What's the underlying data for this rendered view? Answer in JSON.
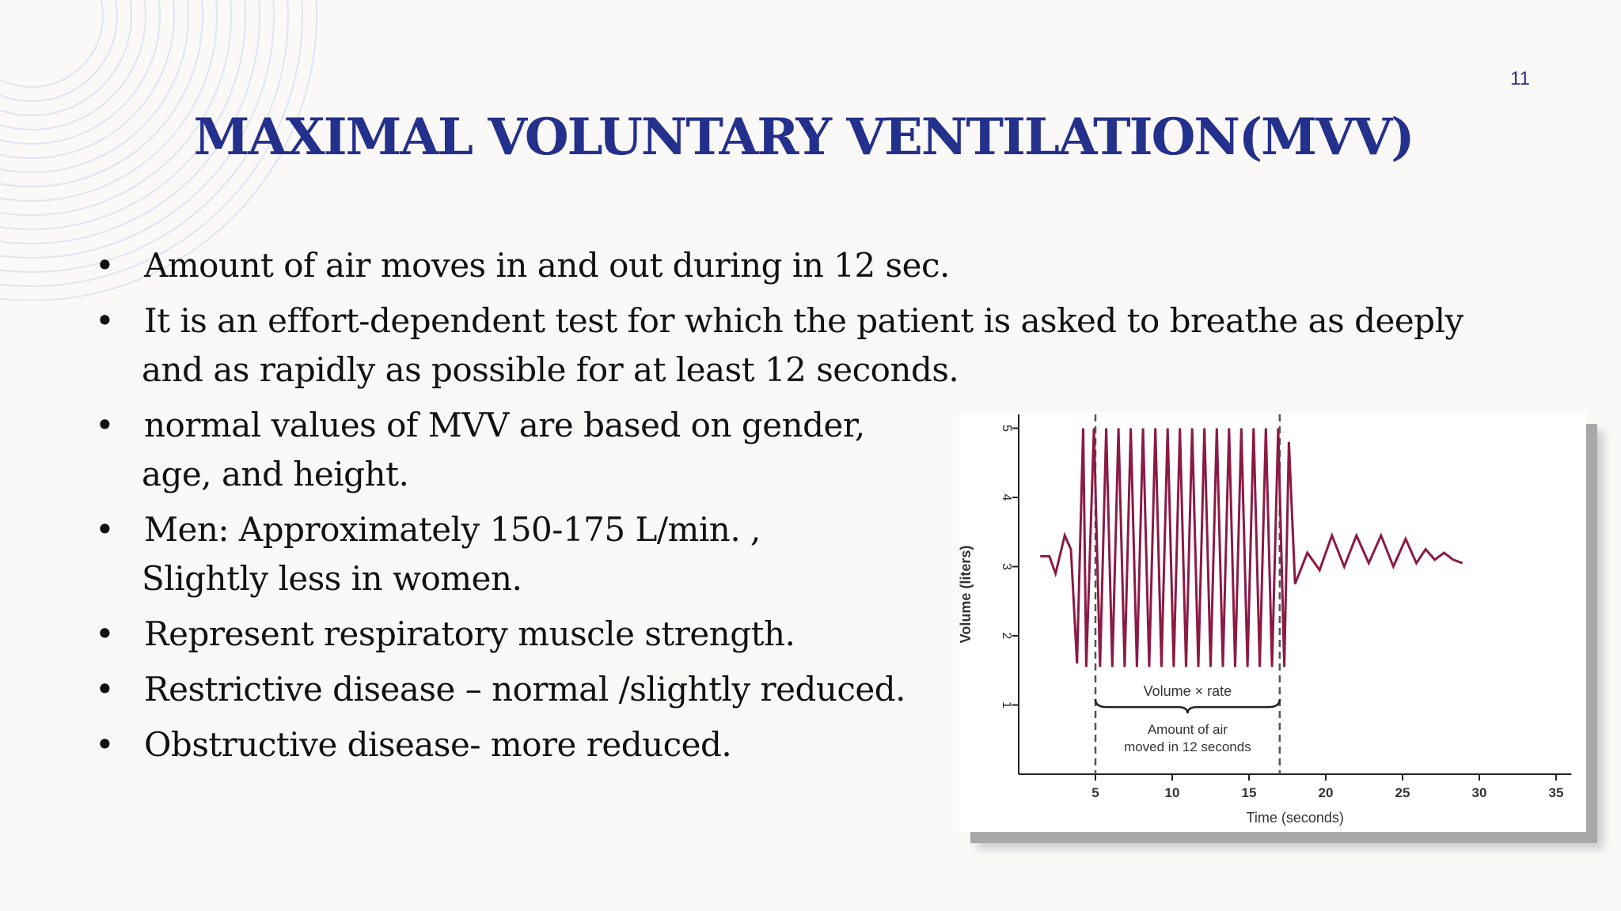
{
  "slide": {
    "number": "11",
    "title": "MAXIMAL VOLUNTARY VENTILATION(MVV)",
    "bullets": [
      {
        "lines": [
          "Amount of air moves in and out during in 12 sec."
        ]
      },
      {
        "lines": [
          "It is an effort-dependent test for which the patient is asked to breathe as deeply",
          "and as rapidly as possible for at least 12 seconds."
        ]
      },
      {
        "lines": [
          "normal values of MVV are based on gender,",
          "age, and height."
        ]
      },
      {
        "lines": [
          "Men: Approximately 150-175 L/min. ,",
          "Slightly less in women."
        ]
      },
      {
        "lines": [
          "Represent respiratory muscle strength."
        ]
      },
      {
        "lines": [
          "Restrictive disease – normal /slightly reduced."
        ]
      },
      {
        "lines": [
          "Obstructive disease- more reduced."
        ]
      }
    ],
    "bullet_char": "•",
    "accent_color": "#23308c"
  },
  "chart_data": {
    "type": "line",
    "xlabel": "Time (seconds)",
    "ylabel": "Volume (liters)",
    "xlim": [
      0,
      36
    ],
    "ylim": [
      0,
      5.2
    ],
    "x_ticks": [
      5,
      10,
      15,
      20,
      25,
      30,
      35
    ],
    "y_ticks": [
      1,
      2,
      3,
      4,
      5
    ],
    "line_color": "#8b1a45",
    "series": [
      {
        "x": [
          1.4,
          2.0,
          2.4,
          3.0,
          3.4,
          3.8,
          4.2,
          4.4,
          4.9,
          5.3,
          5.7,
          6.1,
          6.5,
          6.9,
          7.3,
          7.7,
          8.1,
          8.5,
          8.9,
          9.3,
          9.7,
          10.1,
          10.5,
          10.9,
          11.3,
          11.7,
          12.1,
          12.5,
          12.9,
          13.3,
          13.7,
          14.1,
          14.5,
          14.9,
          15.3,
          15.7,
          16.1,
          16.5,
          16.9,
          17.3,
          17.6,
          18.0,
          18.8,
          19.6,
          20.4,
          21.2,
          22.0,
          22.8,
          23.6,
          24.4,
          25.2,
          25.9,
          26.5,
          27.1,
          27.7,
          28.3,
          28.9
        ],
        "y": [
          3.15,
          3.15,
          2.9,
          3.45,
          3.25,
          1.6,
          5.0,
          1.55,
          5.0,
          1.55,
          5.0,
          1.55,
          5.0,
          1.55,
          5.0,
          1.55,
          5.0,
          1.55,
          5.0,
          1.55,
          5.0,
          1.55,
          5.0,
          1.55,
          5.0,
          1.55,
          5.0,
          1.55,
          5.0,
          1.55,
          5.0,
          1.55,
          5.0,
          1.55,
          5.0,
          1.55,
          5.0,
          1.55,
          5.0,
          1.55,
          4.8,
          2.75,
          3.2,
          2.95,
          3.45,
          3.0,
          3.45,
          3.05,
          3.45,
          3.0,
          3.4,
          3.05,
          3.25,
          3.1,
          3.2,
          3.1,
          3.05
        ]
      }
    ],
    "interval_start": 5,
    "interval_end": 17,
    "annotations": {
      "brace_label": "Volume × rate",
      "caption_line1": "Amount of air",
      "caption_line2": "moved in 12 seconds"
    }
  }
}
